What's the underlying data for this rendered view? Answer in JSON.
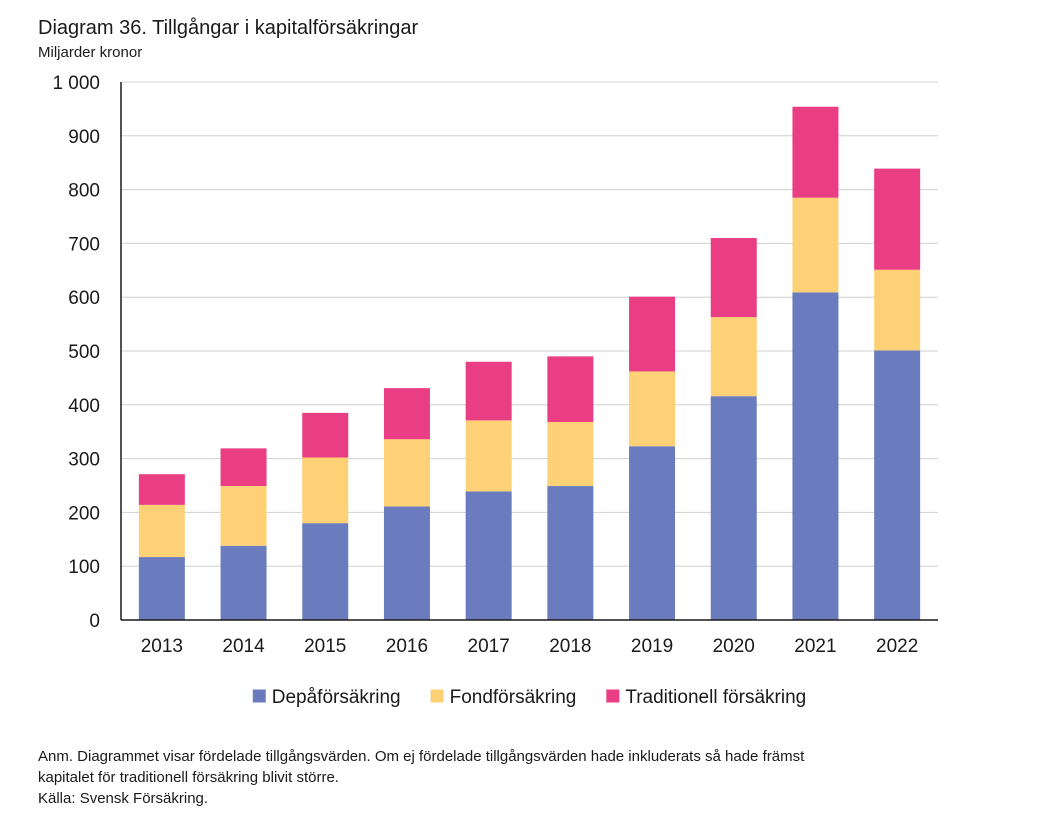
{
  "header": {
    "title": "Diagram 36. Tillgångar i kapitalförsäkringar",
    "unit": "Miljarder kronor"
  },
  "chart_data": {
    "type": "bar",
    "stacked": true,
    "categories": [
      "2013",
      "2014",
      "2015",
      "2016",
      "2017",
      "2018",
      "2019",
      "2020",
      "2021",
      "2022"
    ],
    "series": [
      {
        "name": "Depåförsäkring",
        "color": "#6a7cbd",
        "values": [
          117,
          138,
          180,
          211,
          239,
          249,
          323,
          416,
          609,
          501
        ]
      },
      {
        "name": "Fondförsäkring",
        "color": "#fed177",
        "values": [
          97,
          111,
          122,
          125,
          132,
          119,
          139,
          147,
          176,
          150
        ]
      },
      {
        "name": "Traditionell försäkring",
        "color": "#ea3e84",
        "values": [
          57,
          70,
          83,
          95,
          109,
          122,
          139,
          147,
          169,
          188
        ]
      }
    ],
    "ylim": [
      0,
      1000
    ],
    "yticks": [
      0,
      100,
      200,
      300,
      400,
      500,
      600,
      700,
      800,
      900,
      1000
    ],
    "ytick_labels": [
      "0",
      "100",
      "200",
      "300",
      "400",
      "500",
      "600",
      "700",
      "800",
      "900",
      "1 000"
    ],
    "grid": true,
    "legend": "bottom-center"
  },
  "notes": {
    "line1": "Anm. Diagrammet visar fördelade tillgångsvärden. Om ej fördelade tillgångsvärden hade inkluderats så hade främst",
    "line2": "kapitalet för traditionell försäkring blivit större.",
    "source": "Källa: Svensk Försäkring."
  }
}
